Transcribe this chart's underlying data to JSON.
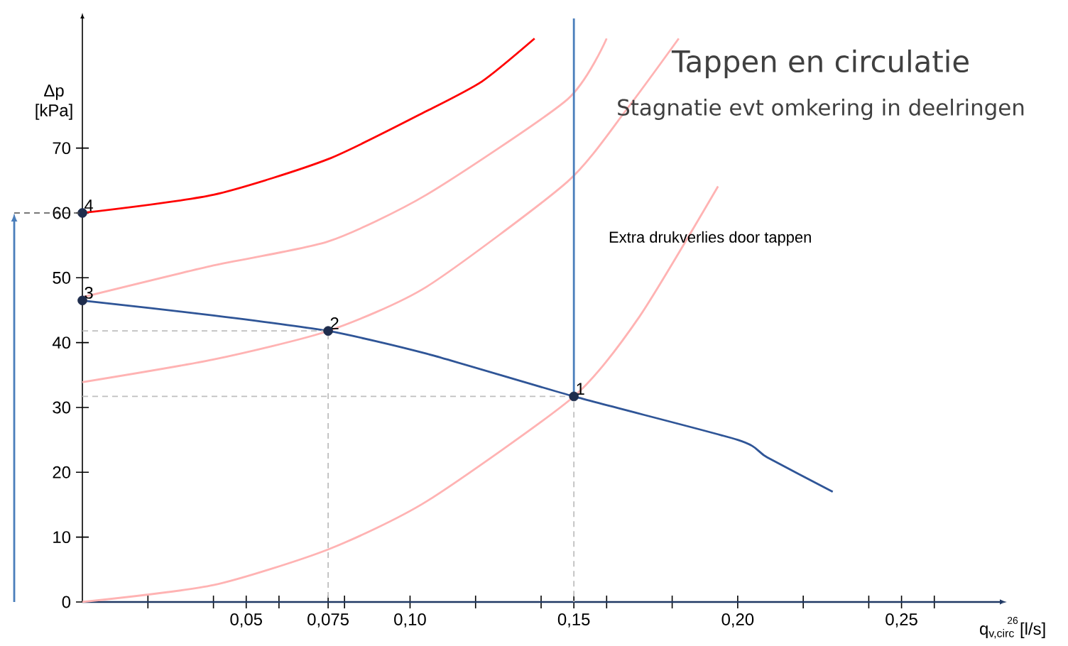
{
  "chart_data": {
    "type": "line",
    "title": "Tappen en circulatie",
    "subtitle": "Stagnatie evt omkering in deelringen",
    "xlabel": "q$_{v,circ}$ [l/s]",
    "ylabel": "Δp [kPa]",
    "annotations": [
      "Extra drukverlies door tappen",
      "26",
      {
        "text": "1",
        "x": 0.15,
        "y": 31.7
      },
      {
        "text": "2",
        "x": 0.075,
        "y": 41.8
      },
      {
        "text": "3",
        "x": 0,
        "y": 46.5
      },
      {
        "text": "4",
        "x": 0,
        "y": 60
      }
    ],
    "xlim": [
      0,
      0.28
    ],
    "ylim": [
      0,
      90
    ],
    "xticks": [
      {
        "value": 0.02,
        "label": null
      },
      {
        "value": 0.04,
        "label": null
      },
      {
        "value": 0.05,
        "label": "0,05"
      },
      {
        "value": 0.06,
        "label": null
      },
      {
        "value": 0.075,
        "label": "0,075"
      },
      {
        "value": 0.08,
        "label": null
      },
      {
        "value": 0.1,
        "label": "0,10"
      },
      {
        "value": 0.12,
        "label": null
      },
      {
        "value": 0.14,
        "label": null
      },
      {
        "value": 0.15,
        "label": "0,15"
      },
      {
        "value": 0.16,
        "label": null
      },
      {
        "value": 0.18,
        "label": null
      },
      {
        "value": 0.2,
        "label": "0,20"
      },
      {
        "value": 0.22,
        "label": null
      },
      {
        "value": 0.24,
        "label": null
      },
      {
        "value": 0.25,
        "label": "0,25"
      },
      {
        "value": 0.26,
        "label": null
      }
    ],
    "yticks": [
      0,
      10,
      20,
      30,
      40,
      50,
      60,
      70
    ],
    "series": [
      {
        "color": "#2f5597",
        "x": [
          0,
          0.04,
          0.075,
          0.105,
          0.15,
          0.2,
          0.209,
          0.229
        ],
        "values": [
          46.5,
          44.2,
          41.8,
          38.3,
          31.7,
          25,
          22.3,
          17
        ]
      },
      {
        "color": "#ff0000",
        "x": [
          0,
          0.04,
          0.075,
          0.105,
          0.122,
          0.138
        ],
        "values": [
          60,
          62.8,
          68.3,
          75.7,
          80.3,
          86.9
        ]
      },
      {
        "color": "#ffb3b3",
        "x": [
          0,
          0.04,
          0.075,
          0.105,
          0.148,
          0.16
        ],
        "values": [
          47,
          51.9,
          55.6,
          62.8,
          77.5,
          86.9
        ]
      },
      {
        "color": "#ffb3b3",
        "x": [
          0,
          0.04,
          0.075,
          0.105,
          0.148,
          0.166,
          0.182
        ],
        "values": [
          33.9,
          37.4,
          41.8,
          48.6,
          64.8,
          75.9,
          86.9
        ]
      },
      {
        "color": "#ffb3b3",
        "x": [
          0,
          0.04,
          0.075,
          0.105,
          0.15,
          0.17,
          0.194
        ],
        "values": [
          0,
          2.6,
          8.1,
          15.5,
          31.7,
          44,
          64.1
        ]
      },
      {
        "color": "#4a7ebb",
        "x": [
          0.15,
          0.15
        ],
        "values": [
          31.7,
          90
        ]
      },
      {
        "color": "#bfbfbf",
        "line_style": "dashed",
        "x": [
          0,
          0.075,
          0.075
        ],
        "values": [
          41.8,
          41.8,
          0
        ]
      },
      {
        "color": "#bfbfbf",
        "line_style": "dashed",
        "x": [
          0,
          0.15,
          0.15
        ],
        "values": [
          31.7,
          31.7,
          0
        ]
      },
      {
        "type": "scatter",
        "color": "#1f2d4d",
        "marker": "circle",
        "x": [
          0.15,
          0.075,
          0,
          0
        ],
        "values": [
          31.7,
          41.8,
          46.5,
          60
        ]
      }
    ]
  }
}
